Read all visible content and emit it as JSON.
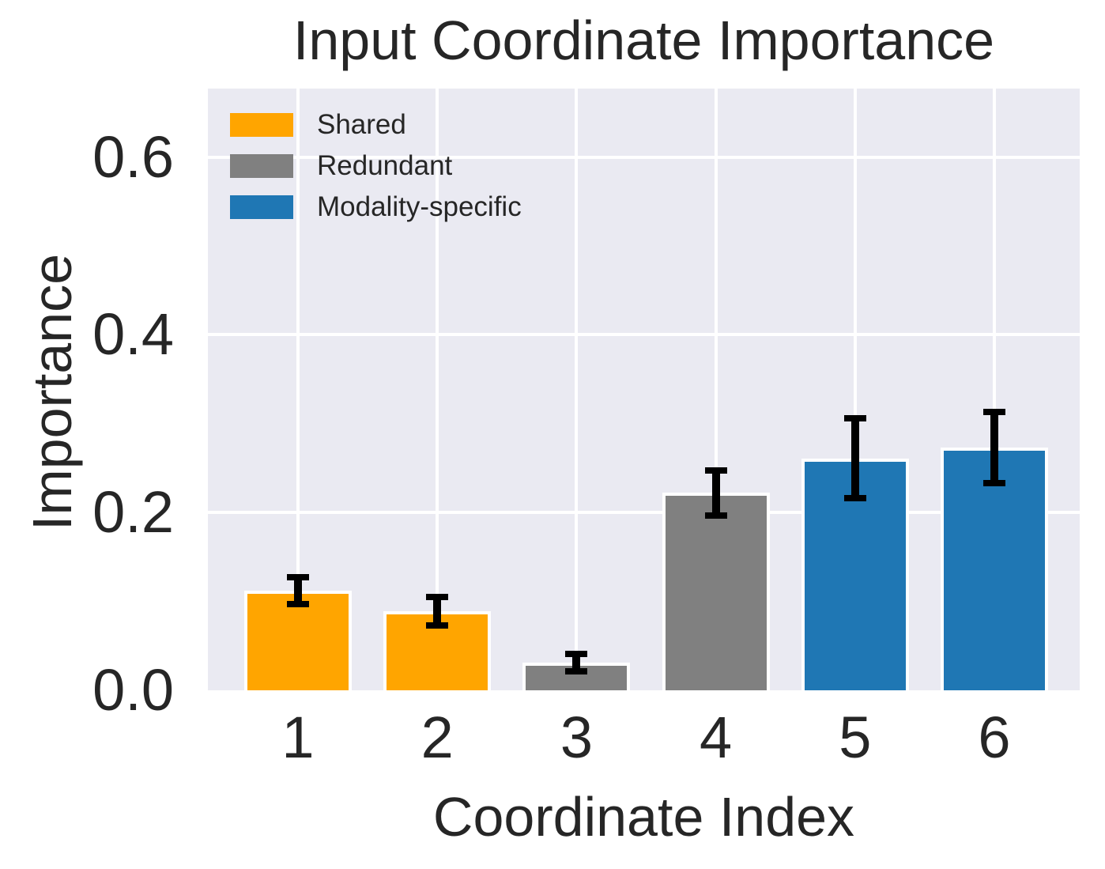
{
  "chart_data": {
    "type": "bar",
    "title": "Input Coordinate Importance",
    "xlabel": "Coordinate Index",
    "ylabel": "Importance",
    "categories": [
      "1",
      "2",
      "3",
      "4",
      "5",
      "6"
    ],
    "values": [
      0.112,
      0.089,
      0.031,
      0.222,
      0.261,
      0.273
    ],
    "errors": [
      0.015,
      0.016,
      0.01,
      0.025,
      0.045,
      0.04
    ],
    "bar_groups": [
      "Shared",
      "Shared",
      "Redundant",
      "Redundant",
      "Modality-specific",
      "Modality-specific"
    ],
    "legend": [
      {
        "label": "Shared",
        "color": "#FFA500"
      },
      {
        "label": "Redundant",
        "color": "#808080"
      },
      {
        "label": "Modality-specific",
        "color": "#1F77B4"
      }
    ],
    "legend_position": "upper-left",
    "yticks": [
      0.0,
      0.2,
      0.4,
      0.6
    ],
    "ytick_labels": [
      "0.0",
      "0.2",
      "0.4",
      "0.6"
    ],
    "ylim": [
      0,
      0.677
    ],
    "grid": true,
    "colors": {
      "plot_background": "#EAEAF2",
      "grid": "#FFFFFF",
      "text": "#262626",
      "error_bar": "#000000",
      "figure_background": "#FFFFFF"
    }
  }
}
